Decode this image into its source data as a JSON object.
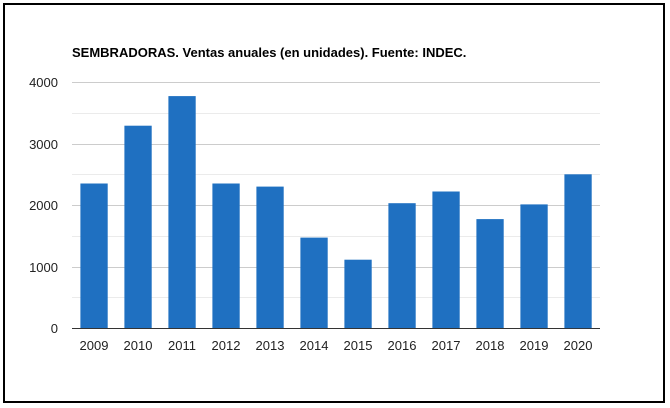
{
  "chart_data": {
    "type": "bar",
    "title": "SEMBRADORAS. Ventas anuales (en unidades). Fuente: INDEC.",
    "categories": [
      "2009",
      "2010",
      "2011",
      "2012",
      "2013",
      "2014",
      "2015",
      "2016",
      "2017",
      "2018",
      "2019",
      "2020"
    ],
    "values": [
      2350,
      3290,
      3770,
      2350,
      2300,
      1470,
      1110,
      2030,
      2220,
      1770,
      2010,
      2500
    ],
    "ylim": [
      0,
      4000
    ],
    "yticks": [
      "0",
      "1000",
      "2000",
      "3000",
      "4000"
    ],
    "grid": true,
    "bar_color": "#1f70c1",
    "grid_color": "#cccccc",
    "minor_grid_color": "#ebebeb"
  }
}
